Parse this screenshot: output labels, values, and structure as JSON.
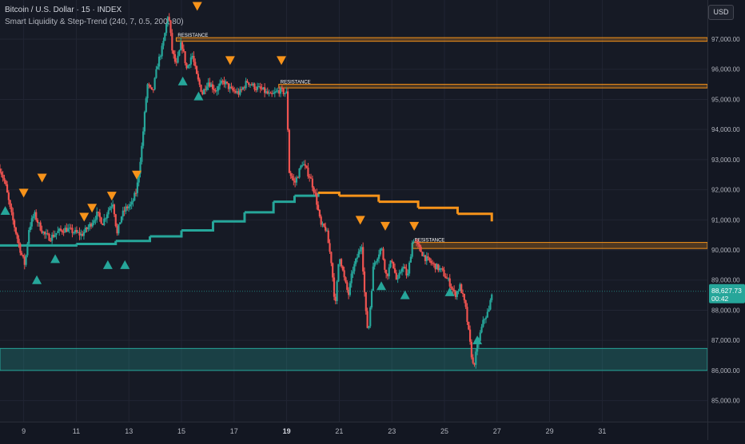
{
  "chart_data": {
    "type": "candlestick",
    "title": "Bitcoin / U.S. Dollar · 15 · INDEX",
    "indicator": "Smart Liquidity & Step-Trend (240, 7, 0.5, 200, 80)",
    "currency": "USD",
    "y_range": [
      84300,
      98300
    ],
    "y_ticks": [
      {
        "value": 97000,
        "label": "97,000.00"
      },
      {
        "value": 96000,
        "label": "96,000.00"
      },
      {
        "value": 95000,
        "label": "95,000.00"
      },
      {
        "value": 94000,
        "label": "94,000.00"
      },
      {
        "value": 93000,
        "label": "93,000.00"
      },
      {
        "value": 92000,
        "label": "92,000.00"
      },
      {
        "value": 91000,
        "label": "91,000.00"
      },
      {
        "value": 90000,
        "label": "90,000.00"
      },
      {
        "value": 89000,
        "label": "89,000.00"
      },
      {
        "value": 88000,
        "label": "88,000.00"
      },
      {
        "value": 87000,
        "label": "87,000.00"
      },
      {
        "value": 86000,
        "label": "86,000.00"
      },
      {
        "value": 85000,
        "label": "85,000.00"
      }
    ],
    "x_range": [
      8.1,
      35.0
    ],
    "x_ticks": [
      {
        "value": 9,
        "label": "9"
      },
      {
        "value": 11,
        "label": "11"
      },
      {
        "value": 13,
        "label": "13"
      },
      {
        "value": 15,
        "label": "15"
      },
      {
        "value": 17,
        "label": "17"
      },
      {
        "value": 19,
        "label": "19",
        "bold": true
      },
      {
        "value": 21,
        "label": "21"
      },
      {
        "value": 23,
        "label": "23"
      },
      {
        "value": 25,
        "label": "25"
      },
      {
        "value": 27,
        "label": "27"
      },
      {
        "value": 29,
        "label": "29"
      },
      {
        "value": 31,
        "label": "31"
      }
    ],
    "price_path": [
      [
        8.1,
        92700
      ],
      [
        8.3,
        92200
      ],
      [
        8.5,
        91300
      ],
      [
        8.7,
        90600
      ],
      [
        8.9,
        89900
      ],
      [
        9.05,
        89500
      ],
      [
        9.2,
        90700
      ],
      [
        9.4,
        91200
      ],
      [
        9.6,
        90800
      ],
      [
        9.8,
        90500
      ],
      [
        10.0,
        90400
      ],
      [
        10.3,
        90600
      ],
      [
        10.6,
        90700
      ],
      [
        10.9,
        90600
      ],
      [
        11.2,
        90500
      ],
      [
        11.5,
        90800
      ],
      [
        11.8,
        91200
      ],
      [
        12.0,
        90900
      ],
      [
        12.2,
        91300
      ],
      [
        12.4,
        91600
      ],
      [
        12.55,
        90500
      ],
      [
        12.7,
        91100
      ],
      [
        12.9,
        91400
      ],
      [
        13.1,
        91500
      ],
      [
        13.3,
        92000
      ],
      [
        13.5,
        93500
      ],
      [
        13.7,
        95500
      ],
      [
        13.9,
        95200
      ],
      [
        14.1,
        96200
      ],
      [
        14.3,
        96800
      ],
      [
        14.5,
        97900
      ],
      [
        14.65,
        96600
      ],
      [
        14.8,
        96100
      ],
      [
        15.0,
        96900
      ],
      [
        15.2,
        96000
      ],
      [
        15.4,
        96500
      ],
      [
        15.6,
        95700
      ],
      [
        15.8,
        95200
      ],
      [
        16.0,
        95600
      ],
      [
        16.3,
        95300
      ],
      [
        16.6,
        95600
      ],
      [
        16.9,
        95300
      ],
      [
        17.2,
        95200
      ],
      [
        17.5,
        95600
      ],
      [
        17.8,
        95400
      ],
      [
        18.1,
        95300
      ],
      [
        18.4,
        95100
      ],
      [
        18.7,
        95300
      ],
      [
        19.0,
        95200
      ],
      [
        19.1,
        92600
      ],
      [
        19.3,
        92200
      ],
      [
        19.6,
        92900
      ],
      [
        19.9,
        92400
      ],
      [
        20.1,
        91800
      ],
      [
        20.3,
        90800
      ],
      [
        20.5,
        90700
      ],
      [
        20.7,
        89600
      ],
      [
        20.85,
        88100
      ],
      [
        21.0,
        89900
      ],
      [
        21.2,
        89000
      ],
      [
        21.35,
        88500
      ],
      [
        21.5,
        89300
      ],
      [
        21.7,
        89800
      ],
      [
        21.85,
        90200
      ],
      [
        22.0,
        88000
      ],
      [
        22.1,
        87200
      ],
      [
        22.3,
        89500
      ],
      [
        22.6,
        90100
      ],
      [
        22.8,
        89100
      ],
      [
        23.0,
        89700
      ],
      [
        23.2,
        88900
      ],
      [
        23.4,
        89500
      ],
      [
        23.6,
        89100
      ],
      [
        23.8,
        90400
      ],
      [
        24.0,
        90100
      ],
      [
        24.3,
        89700
      ],
      [
        24.6,
        89500
      ],
      [
        24.9,
        89300
      ],
      [
        25.2,
        88900
      ],
      [
        25.4,
        88500
      ],
      [
        25.6,
        88800
      ],
      [
        25.8,
        88100
      ],
      [
        26.0,
        86700
      ],
      [
        26.1,
        86100
      ],
      [
        26.3,
        87000
      ],
      [
        26.5,
        87700
      ],
      [
        26.7,
        88000
      ],
      [
        26.8,
        88628
      ]
    ],
    "step_trend": [
      [
        8.1,
        90150
      ],
      [
        9.5,
        90150
      ],
      [
        11.0,
        90200
      ],
      [
        12.5,
        90300
      ],
      [
        13.8,
        90450
      ],
      [
        15.0,
        90650
      ],
      [
        16.2,
        90950
      ],
      [
        17.4,
        91250
      ],
      [
        18.5,
        91600
      ],
      [
        19.3,
        91800
      ],
      [
        20.2,
        91900
      ],
      [
        21.0,
        91800
      ],
      [
        22.5,
        91600
      ],
      [
        24.0,
        91400
      ],
      [
        25.5,
        91200
      ],
      [
        26.8,
        90950
      ]
    ],
    "step_trend_colors": {
      "bull": "#26a69a",
      "bear": "#f7931a",
      "flip_x": 20.2
    },
    "resistance_zones": [
      {
        "label": "RESISTANCE",
        "x_start": 14.8,
        "top": 97050,
        "bottom": 96930
      },
      {
        "label": "RESISTANCE",
        "x_start": 18.7,
        "top": 95500,
        "bottom": 95380
      },
      {
        "label": "RESISTANCE",
        "x_start": 23.8,
        "top": 90250,
        "bottom": 90050
      }
    ],
    "support_zone": {
      "top": 86730,
      "bottom": 86000
    },
    "sell_signals": [
      {
        "x": 9.0,
        "y": 91900
      },
      {
        "x": 9.7,
        "y": 92400
      },
      {
        "x": 11.3,
        "y": 91100
      },
      {
        "x": 11.6,
        "y": 91400
      },
      {
        "x": 12.35,
        "y": 91800
      },
      {
        "x": 13.3,
        "y": 92500
      },
      {
        "x": 15.6,
        "y": 98100
      },
      {
        "x": 16.85,
        "y": 96300
      },
      {
        "x": 18.8,
        "y": 96300
      },
      {
        "x": 21.8,
        "y": 91000
      },
      {
        "x": 22.75,
        "y": 90800
      },
      {
        "x": 23.85,
        "y": 90800
      }
    ],
    "buy_signals": [
      {
        "x": 8.3,
        "y": 91300
      },
      {
        "x": 9.5,
        "y": 89000
      },
      {
        "x": 10.2,
        "y": 89700
      },
      {
        "x": 12.2,
        "y": 89500
      },
      {
        "x": 12.85,
        "y": 89500
      },
      {
        "x": 15.05,
        "y": 95600
      },
      {
        "x": 15.65,
        "y": 95100
      },
      {
        "x": 22.6,
        "y": 88800
      },
      {
        "x": 23.5,
        "y": 88500
      },
      {
        "x": 25.2,
        "y": 88600
      },
      {
        "x": 26.25,
        "y": 87000
      }
    ],
    "last_price": {
      "value": 88627.73,
      "label": "88,627.73",
      "countdown": "00:42"
    },
    "colors": {
      "up": "#26a69a",
      "down": "#ef5350",
      "sell": "#f7931a",
      "buy": "#26a69a",
      "zone": "#f7931a",
      "support": "#26a69a"
    }
  }
}
